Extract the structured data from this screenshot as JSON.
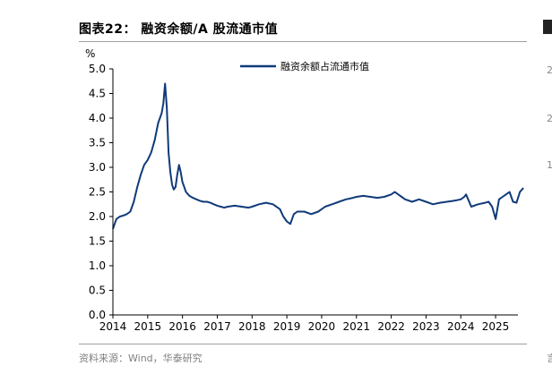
{
  "figure_title": "图表22： 融资余额/A 股流通市值",
  "source_note": "资料来源：Wind，华泰研究",
  "right_edge_glyphs": [
    "2",
    "2",
    "1",
    "言"
  ],
  "chart_data": {
    "type": "line",
    "title": "融资余额/A 股流通市值",
    "ylabel": "%",
    "xlabel": "",
    "ylim": [
      0,
      5.0
    ],
    "xlim": [
      2014.0,
      2025.9
    ],
    "y_ticks": [
      "0.0",
      "0.5",
      "1.0",
      "1.5",
      "2.0",
      "2.5",
      "3.0",
      "3.5",
      "4.0",
      "4.5",
      "5.0"
    ],
    "x_ticks": [
      "2014",
      "2015",
      "2016",
      "2017",
      "2018",
      "2019",
      "2020",
      "2021",
      "2022",
      "2023",
      "2024",
      "2025"
    ],
    "legend": {
      "position": "top-center"
    },
    "colors": {
      "series": "#0f3a7a",
      "axis": "#000000"
    },
    "series": [
      {
        "name": "融资余额占流通市值",
        "x": [
          2014.0,
          2014.05,
          2014.1,
          2014.2,
          2014.3,
          2014.4,
          2014.5,
          2014.6,
          2014.7,
          2014.8,
          2014.9,
          2015.0,
          2015.1,
          2015.2,
          2015.3,
          2015.4,
          2015.45,
          2015.5,
          2015.55,
          2015.6,
          2015.65,
          2015.7,
          2015.75,
          2015.8,
          2015.85,
          2015.9,
          2015.95,
          2016.0,
          2016.05,
          2016.1,
          2016.2,
          2016.3,
          2016.4,
          2016.5,
          2016.6,
          2016.7,
          2016.8,
          2016.9,
          2017.0,
          2017.1,
          2017.2,
          2017.3,
          2017.5,
          2017.7,
          2017.9,
          2018.0,
          2018.2,
          2018.4,
          2018.6,
          2018.8,
          2018.9,
          2019.0,
          2019.1,
          2019.2,
          2019.3,
          2019.5,
          2019.7,
          2019.9,
          2020.0,
          2020.1,
          2020.3,
          2020.5,
          2020.7,
          2020.9,
          2021.0,
          2021.2,
          2021.4,
          2021.6,
          2021.8,
          2022.0,
          2022.1,
          2022.2,
          2022.3,
          2022.4,
          2022.6,
          2022.8,
          2023.0,
          2023.2,
          2023.4,
          2023.6,
          2023.8,
          2024.0,
          2024.1,
          2024.15,
          2024.3,
          2024.5,
          2024.7,
          2024.8,
          2024.9,
          2025.0,
          2025.1,
          2025.2,
          2025.3,
          2025.4,
          2025.5,
          2025.6,
          2025.7,
          2025.8
        ],
        "values": [
          1.75,
          1.85,
          1.95,
          2.0,
          2.02,
          2.05,
          2.1,
          2.3,
          2.6,
          2.85,
          3.05,
          3.15,
          3.3,
          3.55,
          3.9,
          4.1,
          4.3,
          4.7,
          4.2,
          3.3,
          2.9,
          2.65,
          2.55,
          2.6,
          2.85,
          3.05,
          2.9,
          2.7,
          2.6,
          2.5,
          2.42,
          2.38,
          2.35,
          2.32,
          2.3,
          2.3,
          2.28,
          2.25,
          2.22,
          2.2,
          2.18,
          2.2,
          2.22,
          2.2,
          2.18,
          2.2,
          2.25,
          2.28,
          2.25,
          2.15,
          2.0,
          1.9,
          1.85,
          2.05,
          2.1,
          2.1,
          2.05,
          2.1,
          2.15,
          2.2,
          2.25,
          2.3,
          2.35,
          2.38,
          2.4,
          2.42,
          2.4,
          2.38,
          2.4,
          2.45,
          2.5,
          2.45,
          2.4,
          2.35,
          2.3,
          2.35,
          2.3,
          2.25,
          2.28,
          2.3,
          2.32,
          2.35,
          2.4,
          2.45,
          2.2,
          2.25,
          2.28,
          2.3,
          2.2,
          1.95,
          2.35,
          2.4,
          2.45,
          2.5,
          2.3,
          2.28,
          2.5,
          2.58
        ]
      }
    ]
  }
}
